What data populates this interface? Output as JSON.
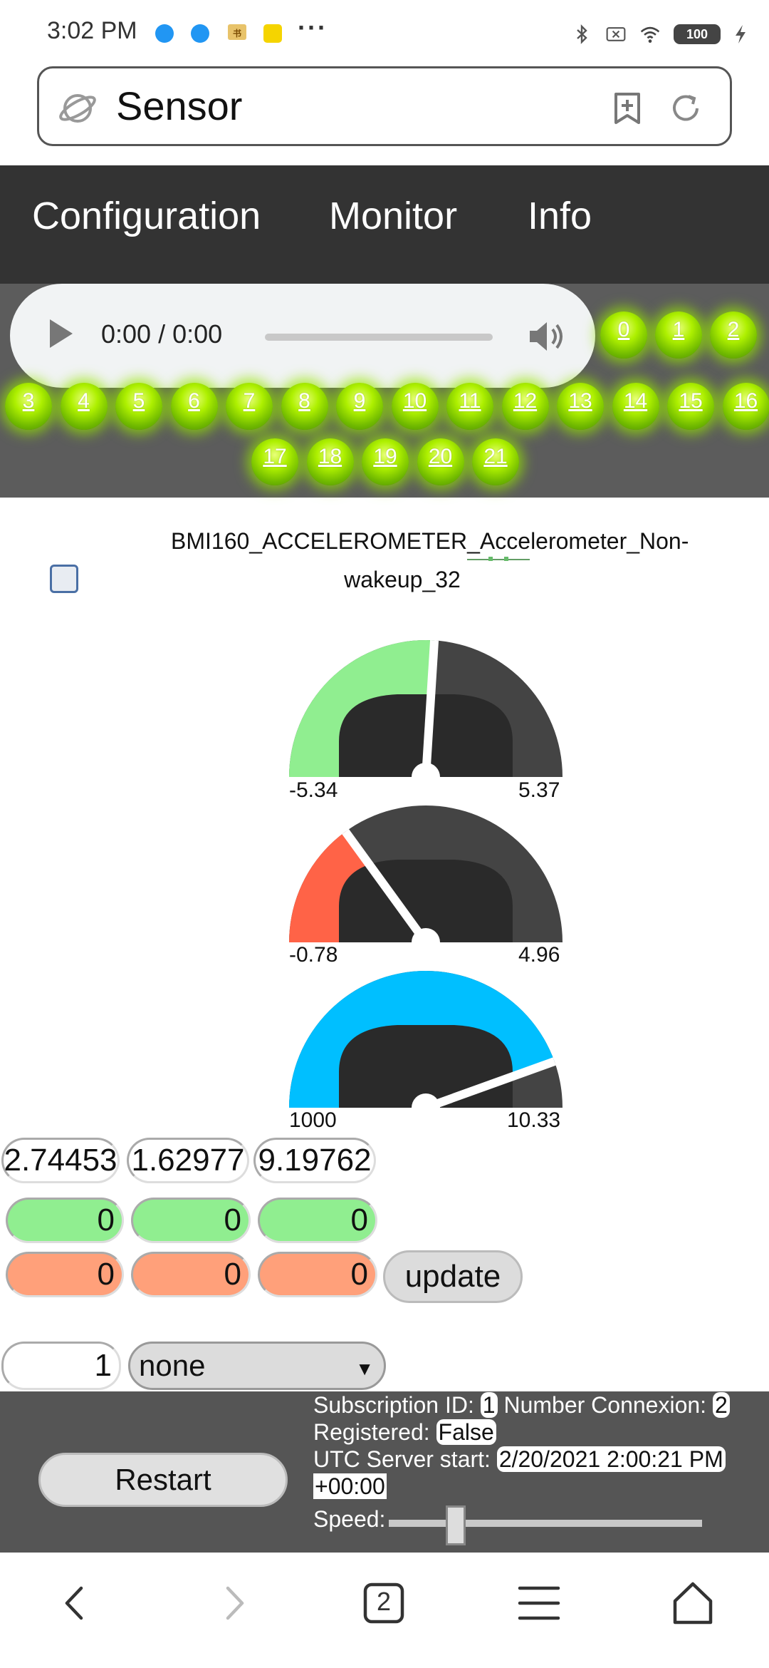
{
  "status_bar": {
    "time": "3:02 PM",
    "battery": "100",
    "icons": [
      "bluetooth-icon",
      "sim-icon",
      "wifi-icon",
      "battery-icon",
      "charging-icon"
    ]
  },
  "browser": {
    "url_text": "Sensor"
  },
  "nav": {
    "items": [
      {
        "label": "Configuration"
      },
      {
        "label": "Monitor"
      },
      {
        "label": "Info"
      }
    ]
  },
  "audio": {
    "time": "0:00 / 0:00"
  },
  "channels": [
    "0",
    "1",
    "2",
    "3",
    "4",
    "5",
    "6",
    "7",
    "8",
    "9",
    "10",
    "11",
    "12",
    "13",
    "14",
    "15",
    "16",
    "17",
    "18",
    "19",
    "20",
    "21"
  ],
  "sensor": {
    "title": "BMI160_ACCELEROMETER_Accelerometer_Non-wakeup_32"
  },
  "gauges": [
    {
      "min_label": "-5.34",
      "max_label": "5.37",
      "fill_fraction": 0.52,
      "color": "#90ee90"
    },
    {
      "min_label": "-0.78",
      "max_label": "4.96",
      "fill_fraction": 0.3,
      "color": "#ff6347"
    },
    {
      "min_label": "1000",
      "max_label": "10.33",
      "fill_fraction": 0.89,
      "color": "#00bfff"
    }
  ],
  "readouts": {
    "values": [
      "2.74453",
      "1.62977",
      "9.19762"
    ],
    "green": [
      "0",
      "0",
      "0"
    ],
    "orange": [
      "0",
      "0",
      "0"
    ],
    "update_label": "update",
    "subscription_input": "1",
    "select_value": "none"
  },
  "footer": {
    "restart_label": "Restart",
    "subscription_label": "Subscription ID:",
    "subscription_id": "1",
    "connexion_label": "Number Connexion:",
    "connexion_count": "2",
    "registered_label": "Registered:",
    "registered_value": "False",
    "utc_label": "UTC Server start:",
    "utc_value": "2/20/2021 2:00:21 PM",
    "utc_tz": "+00:00",
    "speed_label": "Speed:"
  },
  "bottom_nav": {
    "tab_count": "2"
  },
  "colors": {
    "nav_bg": "#333333",
    "channel_bg": "#5c5c5c",
    "led_green": "#aef000",
    "footer_bg": "#555555"
  }
}
